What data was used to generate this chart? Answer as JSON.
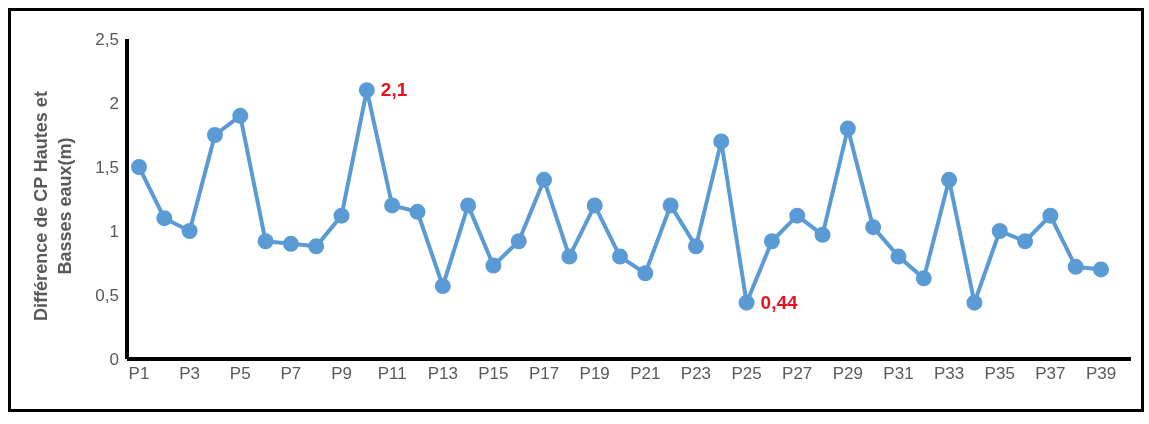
{
  "chart_data": {
    "type": "line",
    "ylabel": "Différence de CP Hautes et Basses eaux(m)",
    "categories": [
      "P1",
      null,
      "P3",
      null,
      "P5",
      null,
      "P7",
      null,
      "P9",
      null,
      "P11",
      null,
      "P13",
      null,
      "P15",
      null,
      "P17",
      null,
      "P19",
      null,
      "P21",
      null,
      "P23",
      null,
      "P25",
      null,
      "P27",
      null,
      "P29",
      null,
      "P31",
      null,
      "P33",
      null,
      "P35",
      null,
      "P37",
      null,
      "P39"
    ],
    "series": [
      {
        "color": "#5b9bd5",
        "values": [
          1.5,
          1.1,
          1.0,
          1.75,
          1.9,
          0.92,
          0.9,
          0.88,
          1.12,
          2.1,
          1.2,
          1.15,
          0.57,
          1.2,
          0.73,
          0.92,
          1.4,
          0.8,
          1.2,
          0.8,
          0.67,
          1.2,
          0.88,
          1.7,
          0.44,
          0.92,
          1.12,
          0.97,
          1.8,
          1.03,
          0.8,
          0.63,
          1.4,
          0.44,
          1.0,
          0.92,
          1.12,
          0.72,
          0.7
        ],
        "value_labels": [
          null,
          null,
          null,
          null,
          null,
          null,
          null,
          null,
          null,
          "2,1",
          null,
          null,
          null,
          null,
          null,
          null,
          null,
          null,
          null,
          null,
          null,
          null,
          null,
          null,
          "0,44",
          null,
          null,
          null,
          null,
          null,
          null,
          null,
          null,
          null,
          null,
          null,
          null,
          null,
          null
        ]
      }
    ],
    "ylim": [
      0,
      2.5
    ],
    "yticks": [
      0,
      {
        "value": 0.5,
        "label": "0,5"
      },
      1,
      {
        "value": 1.5,
        "label": "1,5"
      },
      2,
      {
        "value": 2.5,
        "label": "2,5"
      }
    ],
    "grid": false,
    "legend": false,
    "marker": "circle",
    "line_style": "solid"
  }
}
